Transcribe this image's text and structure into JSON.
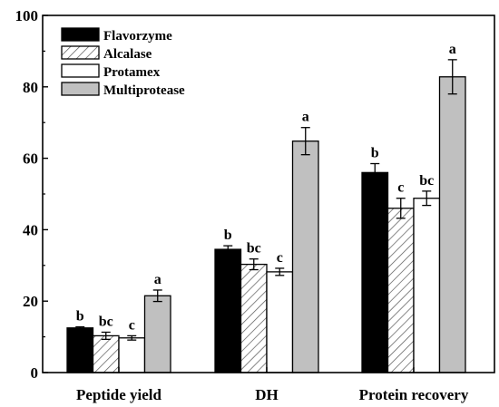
{
  "chart_data": {
    "type": "bar",
    "categories": [
      "Peptide yield",
      "DH",
      "Protein recovery"
    ],
    "ylim": [
      0,
      100
    ],
    "yticks": [
      0,
      20,
      40,
      60,
      80,
      100
    ],
    "grid": false,
    "legend_position": "top-left",
    "series": [
      {
        "name": "Flavorzyme",
        "fill": "solid",
        "color": "#000000",
        "values": [
          12.5,
          34.5,
          56.0
        ],
        "errors": [
          0.3,
          1.0,
          2.5
        ],
        "labels": [
          "b",
          "b",
          "b"
        ]
      },
      {
        "name": "Alcalase",
        "fill": "hatched",
        "color": "#ffffff",
        "values": [
          10.3,
          30.3,
          46.0
        ],
        "errors": [
          1.0,
          1.5,
          2.8
        ],
        "labels": [
          "bc",
          "bc",
          "c"
        ]
      },
      {
        "name": "Protamex",
        "fill": "solid",
        "color": "#ffffff",
        "values": [
          9.7,
          28.2,
          48.8
        ],
        "errors": [
          0.6,
          1.0,
          2.0
        ],
        "labels": [
          "c",
          "c",
          "bc"
        ]
      },
      {
        "name": "Multiprotease",
        "fill": "solid",
        "color": "#c0c0c0",
        "values": [
          21.5,
          64.8,
          82.8
        ],
        "errors": [
          1.6,
          3.8,
          4.8
        ],
        "labels": [
          "a",
          "a",
          "a"
        ]
      }
    ]
  }
}
